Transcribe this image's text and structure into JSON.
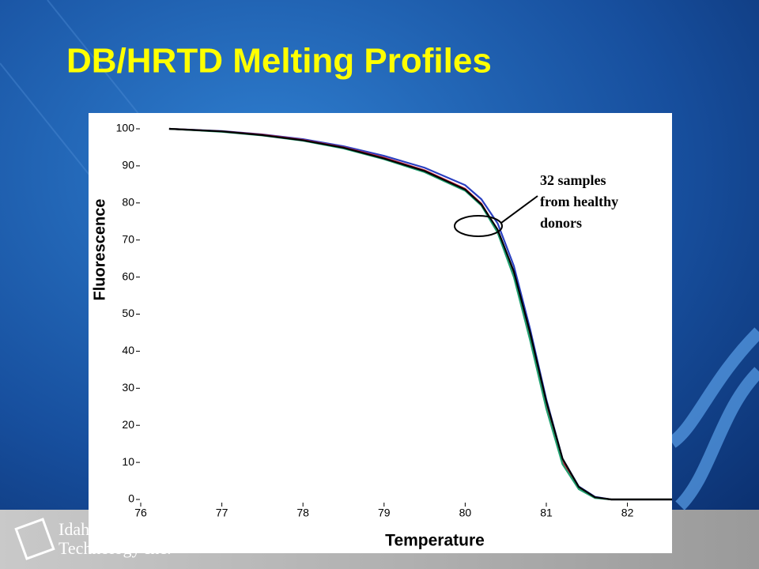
{
  "slide": {
    "title": "DB/HRTD Melting Profiles",
    "logo": {
      "line1": "Idaho",
      "line2": "Technology Inc."
    }
  },
  "chart_data": {
    "type": "line",
    "x_label": "Temperature",
    "y_label": "Fluorescence",
    "annotation": [
      "32 samples",
      "from healthy",
      "donors"
    ],
    "x": [
      76.35,
      77,
      77.5,
      78,
      78.5,
      79,
      79.5,
      80,
      80.2,
      80.4,
      80.6,
      80.8,
      81,
      81.2,
      81.4,
      81.6,
      81.8,
      82,
      82.55
    ],
    "series": [
      {
        "color": "#2a3fc0",
        "values": [
          100,
          99.4,
          98.5,
          97.2,
          95.3,
          92.7,
          89.5,
          84.8,
          81,
          74.5,
          63,
          46,
          27,
          11,
          3.5,
          0.7,
          0,
          0,
          0
        ]
      },
      {
        "color": "#d02040",
        "values": [
          100,
          99.3,
          98.4,
          97,
          95,
          92.2,
          88.8,
          83.8,
          79.8,
          72.5,
          60.5,
          43.5,
          25,
          10,
          3,
          0.5,
          0,
          0,
          0
        ]
      },
      {
        "color": "#20a070",
        "values": [
          100,
          99.2,
          98.2,
          96.8,
          94.7,
          91.8,
          88.3,
          83.3,
          79.3,
          72,
          60,
          43,
          24.5,
          9.5,
          2.8,
          0.4,
          0,
          0,
          0
        ]
      },
      {
        "color": "#000000",
        "values": [
          100,
          99.3,
          98.3,
          96.9,
          94.9,
          92,
          88.6,
          83.6,
          79.6,
          72.8,
          61.5,
          45,
          26.5,
          11,
          3.4,
          0.6,
          0,
          0,
          0
        ]
      }
    ],
    "xlim": [
      76,
      82.55
    ],
    "ylim": [
      0,
      100
    ],
    "xticks": [
      76,
      77,
      78,
      79,
      80,
      81,
      82
    ],
    "yticks": [
      0,
      10,
      20,
      30,
      40,
      50,
      60,
      70,
      80,
      90,
      100
    ]
  }
}
